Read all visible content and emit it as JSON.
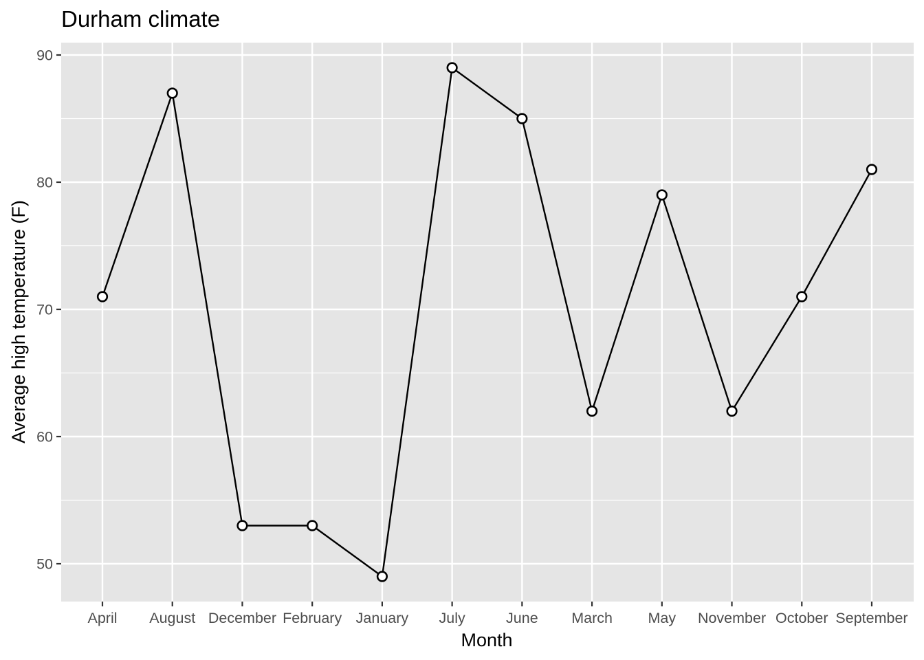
{
  "chart_data": {
    "type": "line",
    "title": "Durham climate",
    "xlabel": "Month",
    "ylabel": "Average high temperature (F)",
    "categories": [
      "April",
      "August",
      "December",
      "February",
      "January",
      "July",
      "June",
      "March",
      "May",
      "November",
      "October",
      "September"
    ],
    "series": [
      {
        "values": [
          71,
          87,
          53,
          53,
          49,
          89,
          85,
          62,
          79,
          62,
          71,
          81
        ]
      }
    ],
    "y_ticks": [
      50,
      60,
      70,
      80,
      90
    ],
    "ylim": [
      47,
      91
    ],
    "grid": true,
    "legend": "none",
    "colors": {
      "panel": "#e5e5e5",
      "grid_major": "#ffffff",
      "line": "#000000",
      "point_fill": "#ffffff",
      "tick_text": "#4d4d4d",
      "tick_mark": "#333333"
    }
  }
}
